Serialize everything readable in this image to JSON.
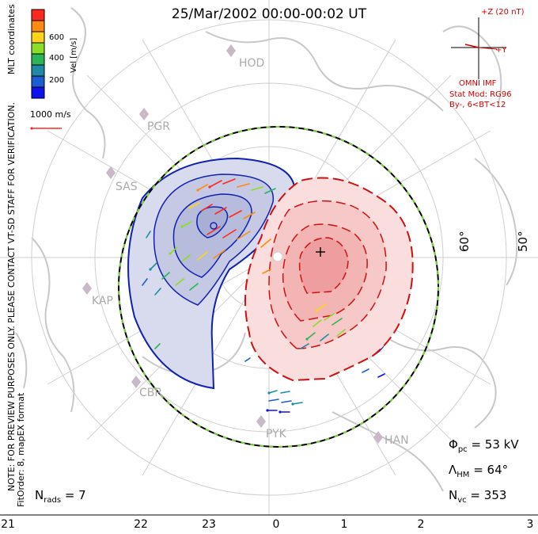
{
  "title": "25/Mar/2002 00:00-00:02 UT",
  "colorbar": {
    "label": "Vel [m/s]",
    "ticks": [
      "600",
      "400",
      "200"
    ],
    "colors": [
      "#ff2a1f",
      "#ff8a10",
      "#ffd31a",
      "#8bde26",
      "#2cb456",
      "#1f8aa6",
      "#1c5bd1",
      "#1010ef"
    ]
  },
  "coord_label": "MLT coordinates",
  "velocity_scale": "1000 m/s",
  "notes": {
    "preview": "NOTE: FOR PREVIEW PURPOSES ONLY. PLEASE CONTACT VT-SD STAFF FOR VERIFICATION.",
    "fit": "FitOrder: 8, mapEX format"
  },
  "imf": {
    "z_label": "+Z (20 nT)",
    "y_label": "+Y",
    "caption": "OMNI IMF",
    "model": "Stat Mod: RG96",
    "condition": "By-, 6<BT<12"
  },
  "stats": {
    "phi_symbol": "Φ",
    "phi_sub": "pc",
    "phi_value": "= 53 kV",
    "lambda_symbol": "Λ",
    "lambda_sub": "HM",
    "lambda_value": "= 64°",
    "nvc_symbol": "N",
    "nvc_sub": "vc",
    "nvc_value": "= 353",
    "nrads_symbol": "N",
    "nrads_sub": "rads",
    "nrads_value": "= 7"
  },
  "mlt_axis": [
    "21",
    "22",
    "23",
    "0",
    "1",
    "2",
    "3"
  ],
  "latitudes": [
    "60°",
    "50°"
  ],
  "stations": [
    "HOD",
    "PGR",
    "SAS",
    "KAP",
    "CBR",
    "PYK",
    "HAN"
  ],
  "colors": {
    "positive_cell": "#f5b5b5",
    "negative_cell": "#d8daee",
    "positive_contour": "#d01010",
    "negative_contour": "#1020b0",
    "boundary": "#7ad23a",
    "coast": "#c8c8c8"
  }
}
